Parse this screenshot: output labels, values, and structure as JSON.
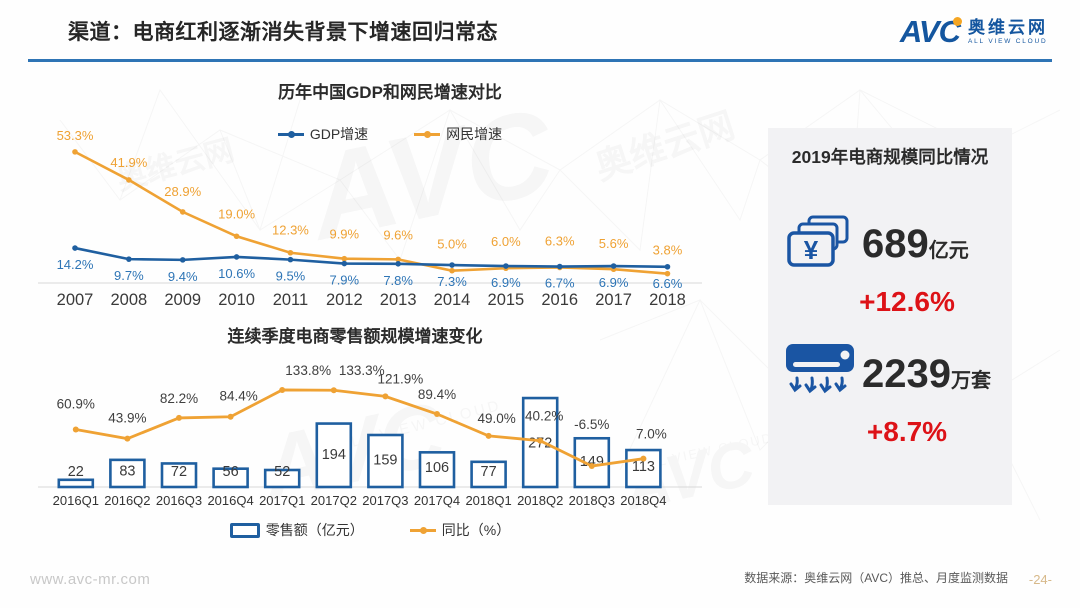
{
  "header": {
    "title": "渠道：电商红利逐渐消失背景下增速回归常态"
  },
  "logo": {
    "short": "AVC",
    "cn": "奥维云网",
    "en": "ALL VIEW CLOUD"
  },
  "colors": {
    "blue": "#1f5fa0",
    "orange": "#efa234",
    "blue_label": "#2e75b6",
    "dark_label": "#404040",
    "red": "#dd1217",
    "accent_rule": "#2e74b5",
    "panel_bg": "#f2f2f4",
    "page_tan": "#d7b98a"
  },
  "chart_data": [
    {
      "type": "line",
      "title": "历年中国GDP和网民增速对比",
      "categories": [
        "2007",
        "2008",
        "2009",
        "2010",
        "2011",
        "2012",
        "2013",
        "2014",
        "2015",
        "2016",
        "2017",
        "2018"
      ],
      "series": [
        {
          "name": "GDP增速",
          "color": "#1f5fa0",
          "values": [
            14.2,
            9.7,
            9.4,
            10.6,
            9.5,
            7.9,
            7.8,
            7.3,
            6.9,
            6.7,
            6.9,
            6.6
          ]
        },
        {
          "name": "网民增速",
          "color": "#efa234",
          "values": [
            53.3,
            41.9,
            28.9,
            19.0,
            12.3,
            9.9,
            9.6,
            5.0,
            6.0,
            6.3,
            5.6,
            3.8
          ]
        }
      ],
      "unit": "%",
      "legend_position": "top",
      "grid": false,
      "ylim": [
        0,
        60
      ]
    },
    {
      "type": "bar+line",
      "title": "连续季度电商零售额规模增速变化",
      "categories": [
        "2016Q1",
        "2016Q2",
        "2016Q3",
        "2016Q4",
        "2017Q1",
        "2017Q2",
        "2017Q3",
        "2017Q4",
        "2018Q1",
        "2018Q2",
        "2018Q3",
        "2018Q4"
      ],
      "series": [
        {
          "name": "零售额（亿元）",
          "type": "bar",
          "color": "#1f5fa0",
          "values": [
            22,
            83,
            72,
            56,
            52,
            194,
            159,
            106,
            77,
            272,
            149,
            113
          ]
        },
        {
          "name": "同比（%）",
          "type": "line",
          "color": "#efa234",
          "values": [
            60.9,
            43.9,
            82.2,
            84.4,
            133.8,
            133.3,
            121.9,
            89.4,
            49.0,
            40.2,
            -6.5,
            7.0
          ]
        }
      ],
      "legend_position": "bottom",
      "grid": false
    }
  ],
  "side_panel": {
    "title": "2019年电商规模同比情况",
    "items": [
      {
        "icon": "money-icon",
        "icon_glyph": "¥",
        "value": "689",
        "unit": "亿元",
        "change": "+12.6%"
      },
      {
        "icon": "air-conditioner-icon",
        "value": "2239",
        "unit": "万套",
        "change": "+8.7%"
      }
    ]
  },
  "footer": {
    "website": "www.avc-mr.com",
    "source": "数据来源：奥维云网（AVC）推总、月度监测数据",
    "page": "-24-"
  }
}
